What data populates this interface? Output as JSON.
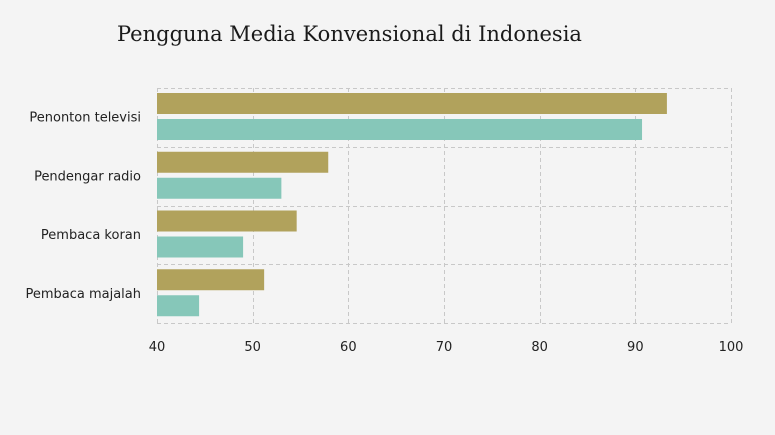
{
  "chart_data": {
    "type": "bar",
    "orientation": "horizontal",
    "title": "Pengguna Media Konvensional di Indonesia",
    "xlabel": "",
    "ylabel": "",
    "categories": [
      "Penonton televisi",
      "Pendengar radio",
      "Pembaca koran",
      "Pembaca majalah"
    ],
    "series": [
      {
        "color": "#b1a25c",
        "values": [
          93.3,
          57.9,
          54.6,
          51.2
        ]
      },
      {
        "color": "#86c7b9",
        "values": [
          90.7,
          53.0,
          49.0,
          44.4
        ]
      }
    ],
    "xlim": [
      40,
      100
    ],
    "x_ticks": [
      40,
      50,
      60,
      70,
      80,
      90,
      100
    ],
    "grid": true,
    "legend": "none"
  }
}
